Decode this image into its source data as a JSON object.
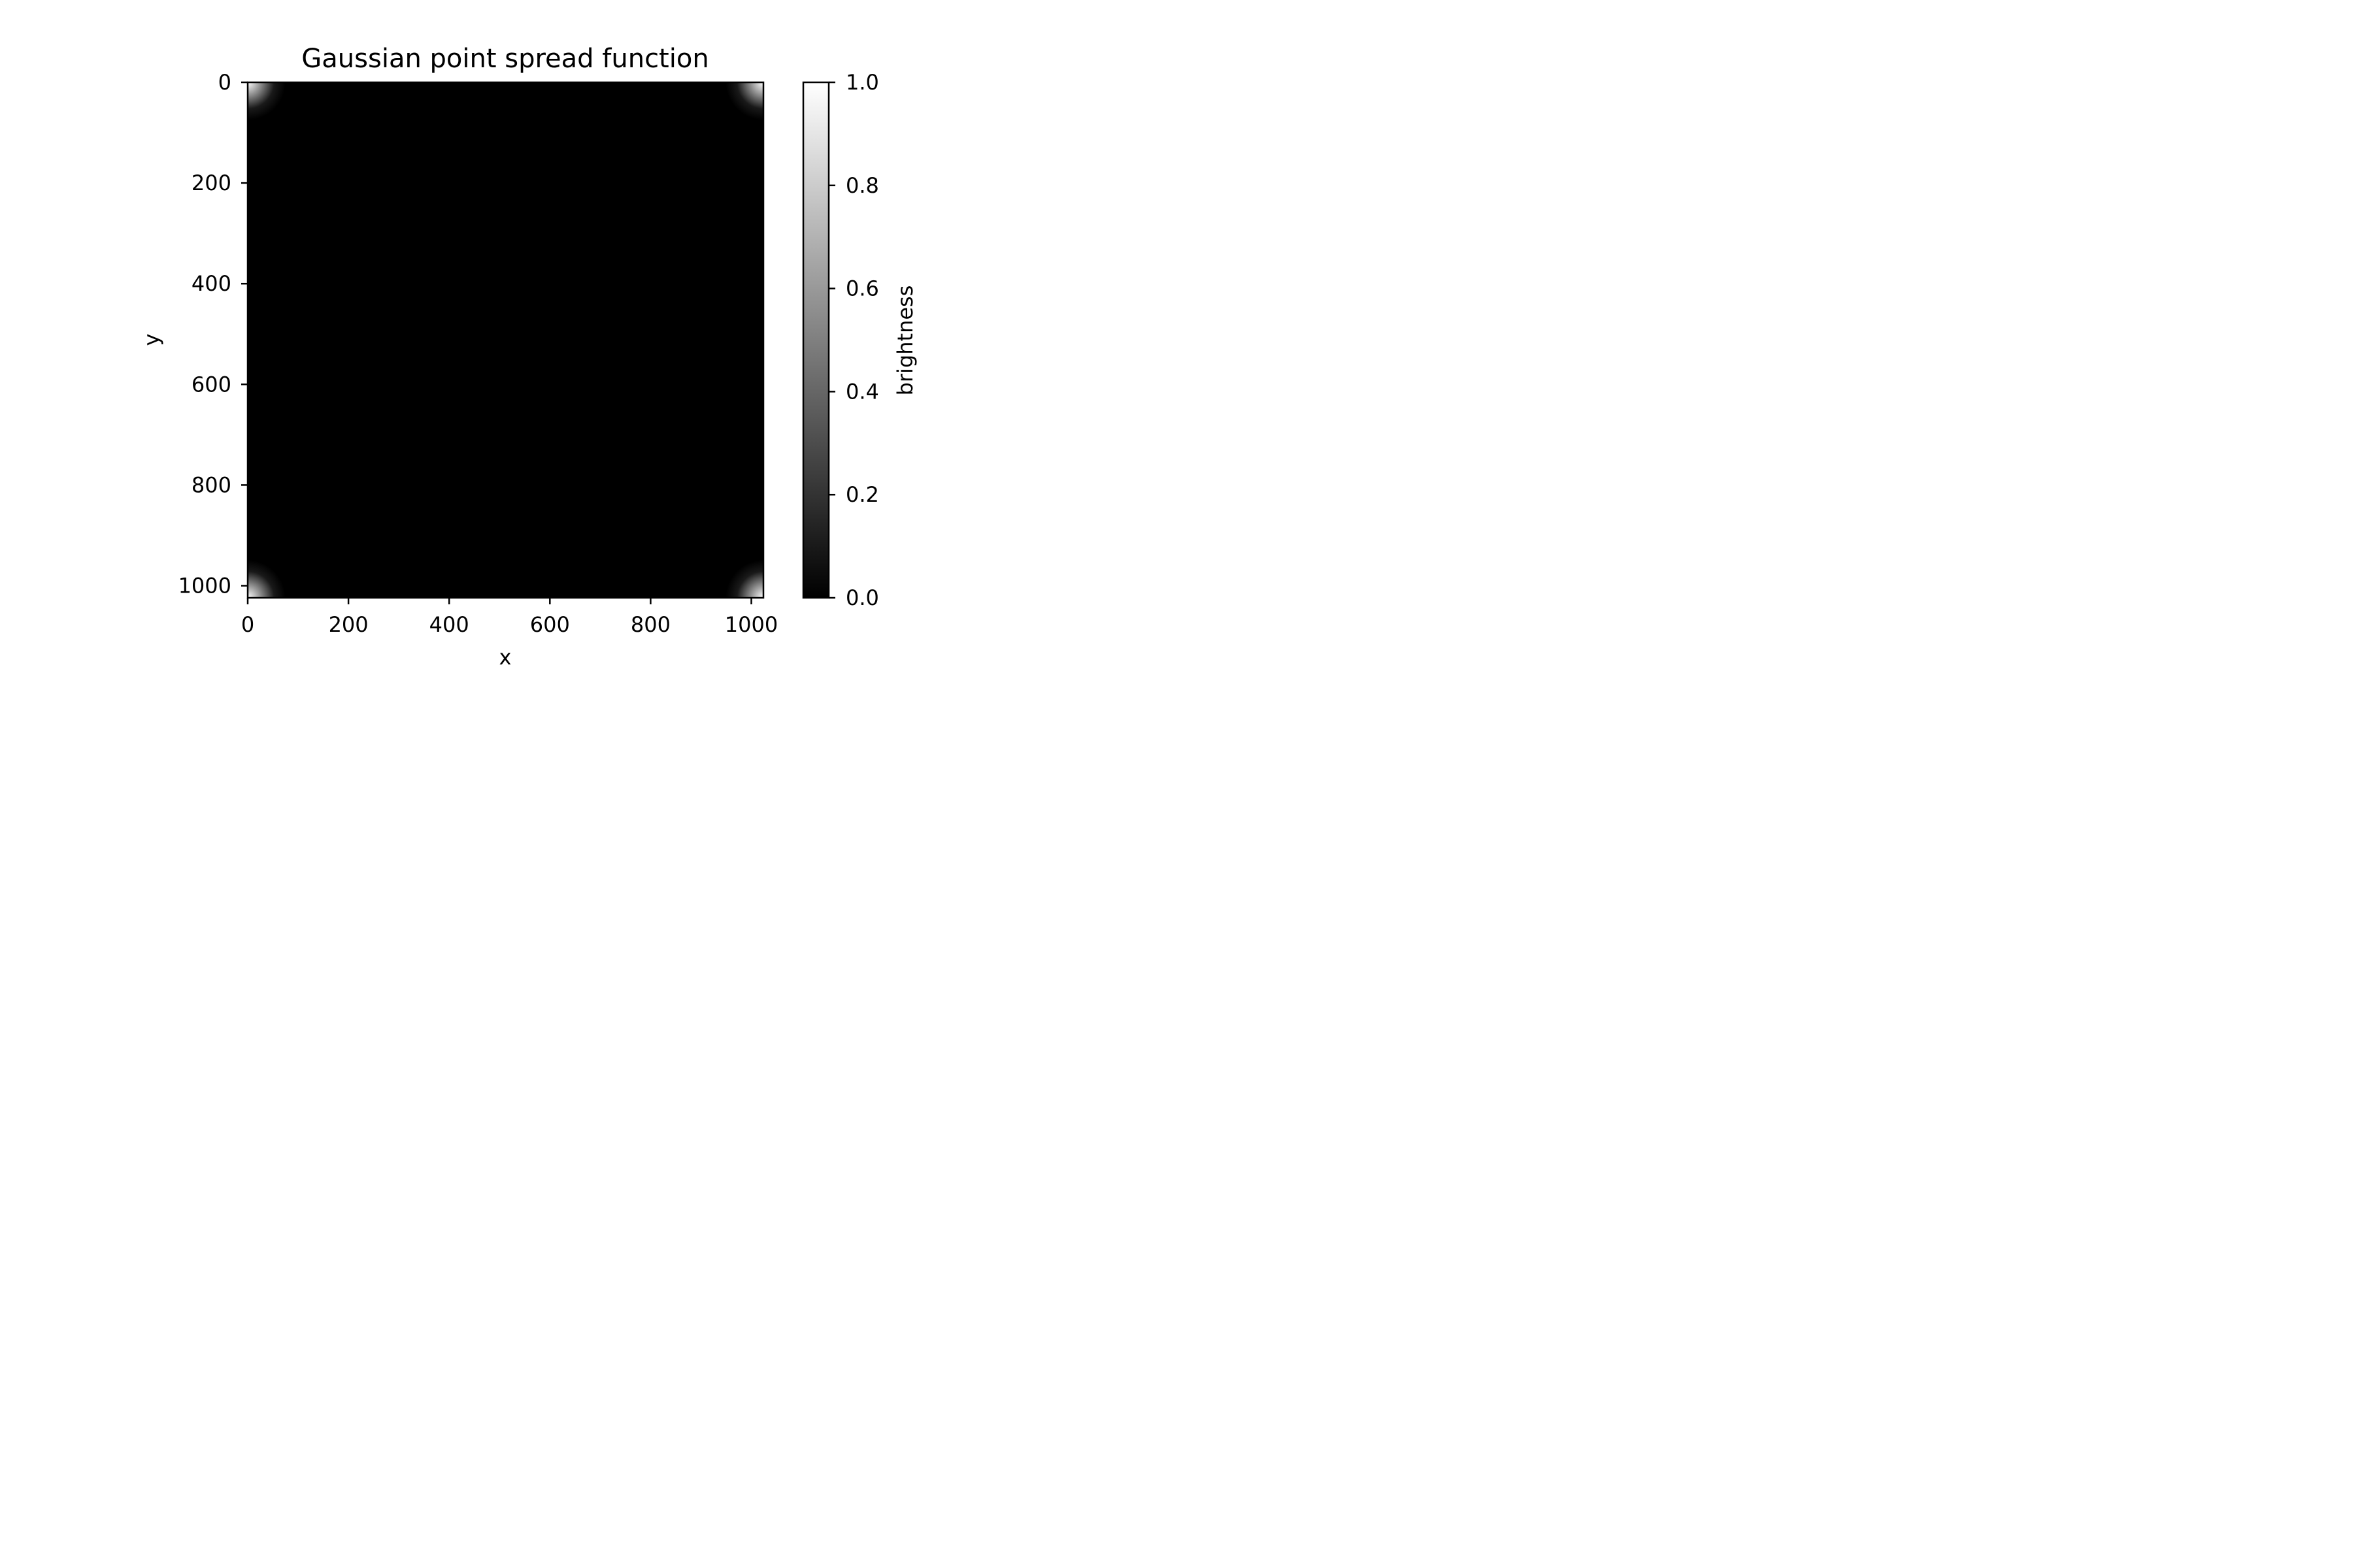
{
  "chart_data": {
    "type": "heatmap",
    "title": "Gaussian point spread function",
    "xlabel": "x",
    "ylabel": "y",
    "x_range": [
      0,
      1024
    ],
    "y_range": [
      1024,
      0
    ],
    "y_inverted": true,
    "x_ticks": [
      0,
      200,
      400,
      600,
      800,
      1000
    ],
    "y_ticks": [
      0,
      200,
      400,
      600,
      800,
      1000
    ],
    "x_tick_labels": [
      "0",
      "200",
      "400",
      "600",
      "800",
      "1000"
    ],
    "y_tick_labels": [
      "0",
      "200",
      "400",
      "600",
      "800",
      "1000"
    ],
    "grid": false,
    "colormap": "gray",
    "colormap_colors": [
      "#000000",
      "#ffffff"
    ],
    "value_range": [
      0.0,
      1.0
    ],
    "peaks": [
      {
        "x": 0,
        "y": 0,
        "value": 1.0
      },
      {
        "x": 1024,
        "y": 0,
        "value": 1.0
      },
      {
        "x": 0,
        "y": 1024,
        "value": 1.0
      },
      {
        "x": 1024,
        "y": 1024,
        "value": 1.0
      }
    ],
    "gaussian_sigma": 25,
    "background_value": 0.0,
    "colorbar": {
      "label": "brightness",
      "ticks": [
        0.0,
        0.2,
        0.4,
        0.6,
        0.8,
        1.0
      ],
      "tick_labels": [
        "0.0",
        "0.2",
        "0.4",
        "0.6",
        "0.8",
        "1.0"
      ]
    }
  }
}
